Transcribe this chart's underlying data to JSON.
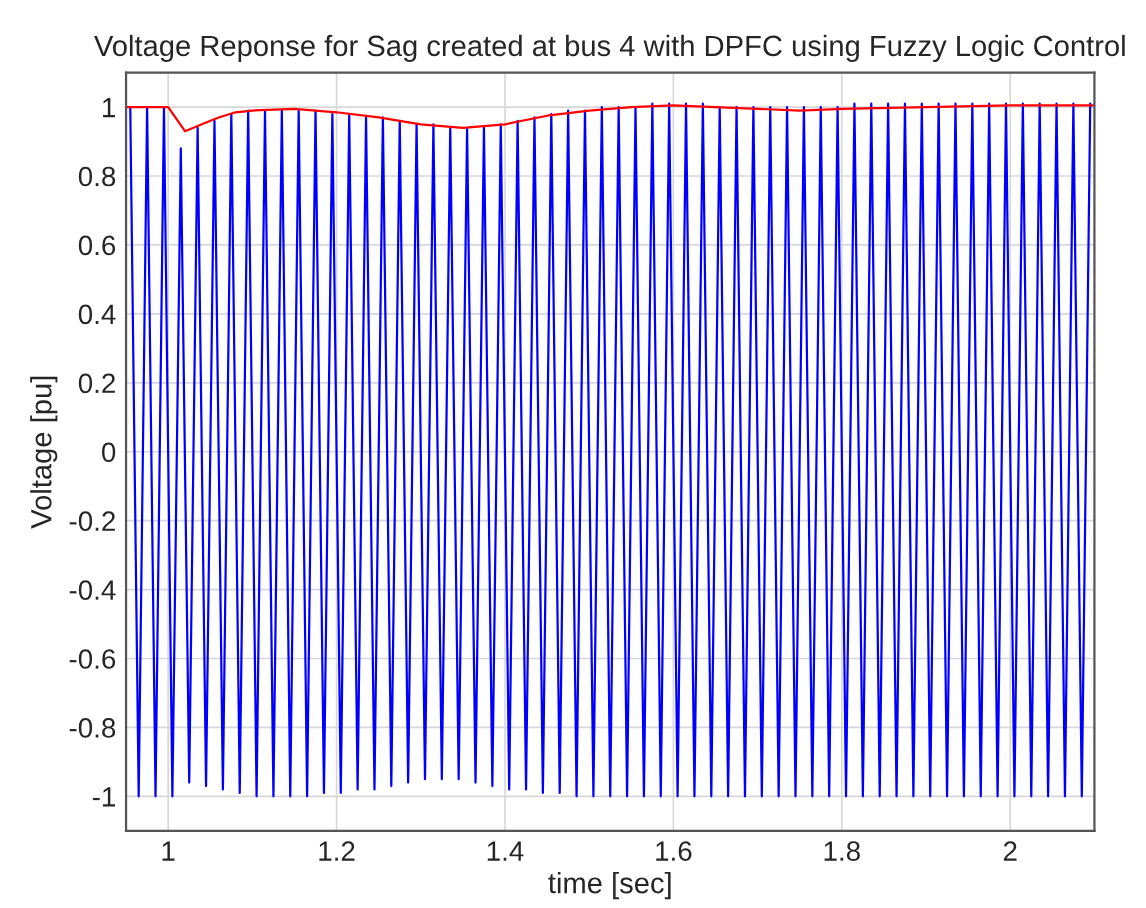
{
  "chart_data": {
    "type": "line",
    "title": "Voltage Reponse for Sag created at bus 4 with DPFC using Fuzzy Logic Control",
    "xlabel": "time [sec]",
    "ylabel": "Voltage [pu]",
    "xlim": [
      0.95,
      2.1
    ],
    "ylim": [
      -1.1,
      1.1
    ],
    "xticks": [
      1,
      1.2,
      1.4,
      1.6,
      1.8,
      2
    ],
    "yticks": [
      -1,
      -0.8,
      -0.6,
      -0.4,
      -0.2,
      0,
      0.2,
      0.4,
      0.6,
      0.8,
      1
    ],
    "grid": true,
    "legend": false,
    "series": [
      {
        "color": "#0000ff",
        "x": [
          0.955,
          0.965,
          0.975,
          0.985,
          0.995,
          1.005,
          1.015,
          1.025,
          1.035,
          1.045,
          1.055,
          1.065,
          1.075,
          1.085,
          1.095,
          1.105,
          1.115,
          1.125,
          1.135,
          1.145,
          1.155,
          1.165,
          1.175,
          1.185,
          1.195,
          1.205,
          1.215,
          1.225,
          1.235,
          1.245,
          1.255,
          1.265,
          1.275,
          1.285,
          1.295,
          1.305,
          1.315,
          1.325,
          1.335,
          1.345,
          1.355,
          1.365,
          1.375,
          1.385,
          1.395,
          1.405,
          1.415,
          1.425,
          1.435,
          1.445,
          1.455,
          1.465,
          1.475,
          1.485,
          1.495,
          1.505,
          1.515,
          1.525,
          1.535,
          1.545,
          1.555,
          1.565,
          1.575,
          1.585,
          1.595,
          1.605,
          1.615,
          1.625,
          1.635,
          1.645,
          1.655,
          1.665,
          1.675,
          1.685,
          1.695,
          1.705,
          1.715,
          1.725,
          1.735,
          1.745,
          1.755,
          1.765,
          1.775,
          1.785,
          1.795,
          1.805,
          1.815,
          1.825,
          1.835,
          1.845,
          1.855,
          1.865,
          1.875,
          1.885,
          1.895,
          1.905,
          1.915,
          1.925,
          1.935,
          1.945,
          1.955,
          1.965,
          1.975,
          1.985,
          1.995,
          2.005,
          2.015,
          2.025,
          2.035,
          2.045,
          2.055,
          2.065,
          2.075,
          2.085,
          2.095
        ],
        "values": [
          1.0,
          -1.0,
          1.0,
          -1.0,
          1.0,
          -1.0,
          0.88,
          -0.96,
          0.94,
          -0.97,
          0.96,
          -0.98,
          0.98,
          -0.99,
          0.99,
          -1.0,
          0.99,
          -1.0,
          0.99,
          -1.0,
          0.99,
          -1.0,
          0.99,
          -0.99,
          0.98,
          -0.99,
          0.98,
          -0.98,
          0.97,
          -0.98,
          0.97,
          -0.97,
          0.96,
          -0.96,
          0.95,
          -0.95,
          0.95,
          -0.95,
          0.94,
          -0.95,
          0.94,
          -0.96,
          0.94,
          -0.97,
          0.95,
          -0.98,
          0.96,
          -0.98,
          0.97,
          -0.99,
          0.98,
          -0.99,
          0.99,
          -1.0,
          0.99,
          -1.0,
          1.0,
          -1.0,
          1.0,
          -1.0,
          1.0,
          -1.0,
          1.01,
          -1.0,
          1.01,
          -1.0,
          1.01,
          -1.0,
          1.01,
          -1.0,
          1.0,
          -1.0,
          1.0,
          -1.0,
          1.0,
          -1.0,
          1.0,
          -1.0,
          1.0,
          -1.0,
          1.0,
          -1.0,
          1.0,
          -1.0,
          1.0,
          -1.0,
          1.01,
          -1.0,
          1.01,
          -1.0,
          1.01,
          -1.0,
          1.01,
          -1.0,
          1.01,
          -1.0,
          1.01,
          -1.0,
          1.01,
          -1.0,
          1.01,
          -1.0,
          1.01,
          -1.0,
          1.01,
          -1.0,
          1.01,
          -1.0,
          1.01,
          -1.0,
          1.01,
          -1.0,
          1.01,
          -1.0,
          1.01
        ]
      },
      {
        "color": "#ff0000",
        "x": [
          0.95,
          1.0,
          1.02,
          1.04,
          1.06,
          1.08,
          1.1,
          1.15,
          1.2,
          1.25,
          1.3,
          1.35,
          1.4,
          1.45,
          1.5,
          1.55,
          1.6,
          1.65,
          1.7,
          1.75,
          1.8,
          1.9,
          2.0,
          2.1
        ],
        "values": [
          1.0,
          1.0,
          0.93,
          0.95,
          0.97,
          0.985,
          0.99,
          0.995,
          0.985,
          0.97,
          0.95,
          0.94,
          0.95,
          0.975,
          0.99,
          1.0,
          1.005,
          1.0,
          0.995,
          0.99,
          0.995,
          1.0,
          1.005,
          1.005
        ]
      }
    ]
  }
}
